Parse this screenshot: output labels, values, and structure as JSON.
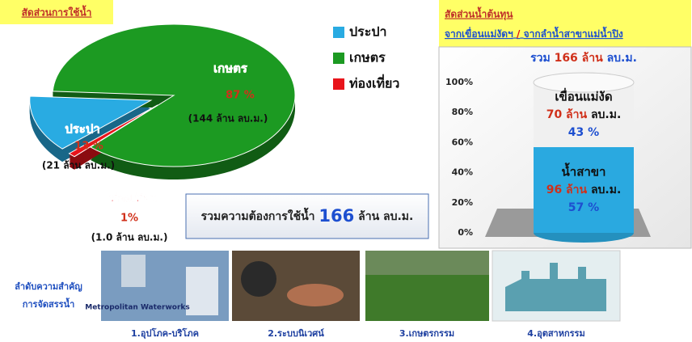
{
  "chart_data": [
    {
      "type": "pie",
      "title": "สัดส่วนการใช้น้ำ",
      "categories": [
        "ประปา",
        "เกษตร",
        "ท่องเที่ยว"
      ],
      "values": [
        13,
        87,
        1
      ],
      "value_labels": [
        "13 %",
        "87 %",
        "1%"
      ],
      "volume_labels": [
        "(21 ล้าน ลบ.ม.)",
        "(144 ล้าน ลบ.ม.)",
        "(1.0 ล้าน ลบ.ม.)"
      ],
      "colors": [
        "#29abe2",
        "#1c9a22",
        "#e8141b"
      ],
      "legend": "right",
      "total_label": {
        "prefix": "รวมความต้องการใช้น้ำ",
        "value": 166,
        "unit": "ล้าน ลบ.ม."
      }
    },
    {
      "type": "stacked-cylinder",
      "title": "สัดส่วนน้ำต้นทุน",
      "subtitle": [
        "จากเขื่อนแม่งัดฯ",
        "/",
        "จากลำน้ำสาขาแม่น้ำปิง"
      ],
      "ylim": [
        0,
        100
      ],
      "yticks": [
        {
          "value": 0,
          "label": "0%"
        },
        {
          "value": 20,
          "label": "20%"
        },
        {
          "value": 40,
          "label": "40%"
        },
        {
          "value": 60,
          "label": "60%"
        },
        {
          "value": 80,
          "label": "80%"
        },
        {
          "value": 100,
          "label": "100%"
        }
      ],
      "series": [
        {
          "name": "น้ำสาขา",
          "color": "#2aa9e0",
          "values": [
            57
          ],
          "value_labels": [
            "57 %"
          ],
          "volume": "96 ล้าน",
          "unit": "ลบ.ม."
        },
        {
          "name": "เขื่อนแม่งัด",
          "color": "#f0f0f0",
          "values": [
            43
          ],
          "value_labels": [
            "43 %"
          ],
          "volume": "70 ล้าน",
          "unit": "ลบ.ม."
        }
      ],
      "total": {
        "prefix": "รวม",
        "value": "166 ล้าน",
        "unit": "ลบ.ม."
      }
    }
  ],
  "priority": {
    "title_lines": [
      "ลำดับความสำคัญ",
      "การจัดสรรน้ำ"
    ],
    "items": [
      {
        "label": "1.อุปโภค-บริโภค",
        "image_text": "Metropolitan Waterworks"
      },
      {
        "label": "2.ระบบนิเวศน์"
      },
      {
        "label": "3.เกษตรกรรม"
      },
      {
        "label": "4.อุตสาหกรรม"
      }
    ]
  }
}
